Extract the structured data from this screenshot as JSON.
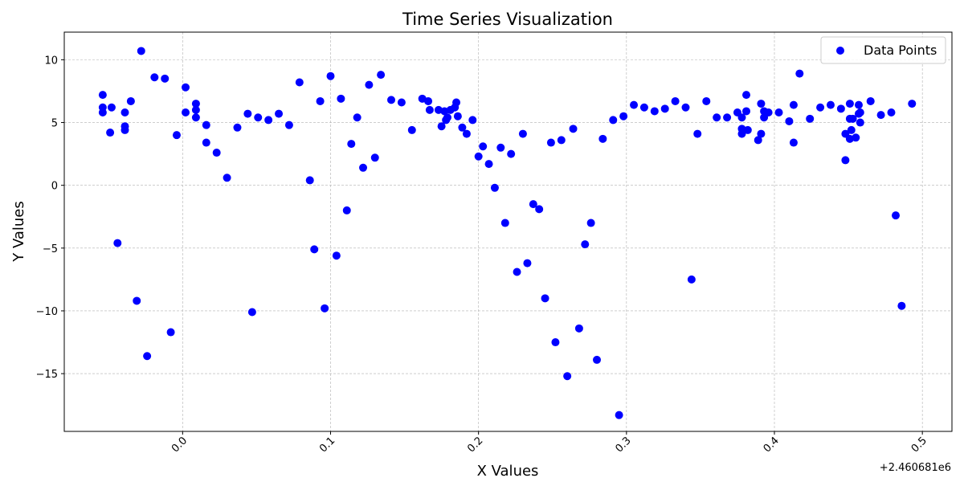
{
  "chart_data": {
    "type": "scatter",
    "title": "Time Series Visualization",
    "xlabel": "X Values",
    "ylabel": "Y Values",
    "x_offset_label": "+2.460681e6",
    "xlim": [
      -0.08,
      0.52
    ],
    "ylim": [
      -19.6,
      12.2
    ],
    "x_ticks": [
      0.0,
      0.1,
      0.2,
      0.3,
      0.4,
      0.5
    ],
    "x_tick_labels": [
      "0.0",
      "0.1",
      "0.2",
      "0.3",
      "0.4",
      "0.5"
    ],
    "y_ticks": [
      -15,
      -10,
      -5,
      0,
      5,
      10
    ],
    "y_tick_labels": [
      "−15",
      "−10",
      "−5",
      "0",
      "5",
      "10"
    ],
    "grid": true,
    "legend_position": "top-right",
    "marker_color": "#0000ff",
    "series": [
      {
        "name": "Data Points",
        "points": [
          [
            -0.054,
            7.2
          ],
          [
            -0.054,
            6.2
          ],
          [
            -0.054,
            5.8
          ],
          [
            -0.048,
            6.2
          ],
          [
            -0.049,
            4.2
          ],
          [
            -0.044,
            -4.6
          ],
          [
            -0.039,
            5.8
          ],
          [
            -0.039,
            4.7
          ],
          [
            -0.039,
            4.4
          ],
          [
            -0.035,
            6.7
          ],
          [
            -0.031,
            -9.2
          ],
          [
            -0.028,
            10.7
          ],
          [
            -0.024,
            -13.6
          ],
          [
            -0.019,
            8.6
          ],
          [
            -0.012,
            8.5
          ],
          [
            -0.008,
            -11.7
          ],
          [
            -0.004,
            4.0
          ],
          [
            0.002,
            5.8
          ],
          [
            0.002,
            7.8
          ],
          [
            0.009,
            6.5
          ],
          [
            0.009,
            6.0
          ],
          [
            0.009,
            5.4
          ],
          [
            0.016,
            4.8
          ],
          [
            0.016,
            3.4
          ],
          [
            0.023,
            2.6
          ],
          [
            0.03,
            0.6
          ],
          [
            0.037,
            4.6
          ],
          [
            0.044,
            5.7
          ],
          [
            0.047,
            -10.1
          ],
          [
            0.051,
            5.4
          ],
          [
            0.058,
            5.2
          ],
          [
            0.065,
            5.7
          ],
          [
            0.072,
            4.8
          ],
          [
            0.079,
            8.2
          ],
          [
            0.086,
            0.4
          ],
          [
            0.089,
            -5.1
          ],
          [
            0.093,
            6.7
          ],
          [
            0.096,
            -9.8
          ],
          [
            0.1,
            8.7
          ],
          [
            0.104,
            -5.6
          ],
          [
            0.107,
            6.9
          ],
          [
            0.111,
            -2.0
          ],
          [
            0.114,
            3.3
          ],
          [
            0.118,
            5.4
          ],
          [
            0.122,
            1.4
          ],
          [
            0.126,
            8.0
          ],
          [
            0.13,
            2.2
          ],
          [
            0.134,
            8.8
          ],
          [
            0.141,
            6.8
          ],
          [
            0.148,
            6.6
          ],
          [
            0.155,
            4.4
          ],
          [
            0.162,
            6.9
          ],
          [
            0.166,
            6.7
          ],
          [
            0.167,
            6.0
          ],
          [
            0.173,
            6.0
          ],
          [
            0.175,
            4.7
          ],
          [
            0.177,
            5.9
          ],
          [
            0.178,
            5.2
          ],
          [
            0.179,
            5.4
          ],
          [
            0.181,
            6.0
          ],
          [
            0.184,
            6.2
          ],
          [
            0.185,
            6.6
          ],
          [
            0.186,
            5.5
          ],
          [
            0.189,
            4.6
          ],
          [
            0.192,
            4.1
          ],
          [
            0.196,
            5.2
          ],
          [
            0.2,
            2.3
          ],
          [
            0.203,
            3.1
          ],
          [
            0.207,
            1.7
          ],
          [
            0.211,
            -0.2
          ],
          [
            0.215,
            3.0
          ],
          [
            0.218,
            -3.0
          ],
          [
            0.222,
            2.5
          ],
          [
            0.226,
            -6.9
          ],
          [
            0.23,
            4.1
          ],
          [
            0.233,
            -6.2
          ],
          [
            0.237,
            -1.5
          ],
          [
            0.241,
            -1.9
          ],
          [
            0.245,
            -9.0
          ],
          [
            0.249,
            3.4
          ],
          [
            0.252,
            -12.5
          ],
          [
            0.256,
            3.6
          ],
          [
            0.26,
            -15.2
          ],
          [
            0.264,
            4.5
          ],
          [
            0.268,
            -11.4
          ],
          [
            0.272,
            -4.7
          ],
          [
            0.276,
            -3.0
          ],
          [
            0.28,
            -13.9
          ],
          [
            0.284,
            3.7
          ],
          [
            0.291,
            5.2
          ],
          [
            0.295,
            -18.3
          ],
          [
            0.298,
            5.5
          ],
          [
            0.305,
            6.4
          ],
          [
            0.312,
            6.2
          ],
          [
            0.319,
            5.9
          ],
          [
            0.326,
            6.1
          ],
          [
            0.333,
            6.7
          ],
          [
            0.34,
            6.2
          ],
          [
            0.344,
            -7.5
          ],
          [
            0.348,
            4.1
          ],
          [
            0.354,
            6.7
          ],
          [
            0.361,
            5.4
          ],
          [
            0.368,
            5.4
          ],
          [
            0.375,
            5.8
          ],
          [
            0.378,
            5.4
          ],
          [
            0.378,
            4.5
          ],
          [
            0.378,
            4.1
          ],
          [
            0.381,
            7.2
          ],
          [
            0.381,
            5.9
          ],
          [
            0.382,
            4.4
          ],
          [
            0.389,
            3.6
          ],
          [
            0.391,
            4.1
          ],
          [
            0.391,
            6.5
          ],
          [
            0.393,
            5.4
          ],
          [
            0.393,
            5.9
          ],
          [
            0.396,
            5.8
          ],
          [
            0.403,
            5.8
          ],
          [
            0.41,
            5.1
          ],
          [
            0.413,
            6.4
          ],
          [
            0.413,
            3.4
          ],
          [
            0.417,
            8.9
          ],
          [
            0.424,
            5.3
          ],
          [
            0.431,
            6.2
          ],
          [
            0.438,
            6.4
          ],
          [
            0.445,
            6.1
          ],
          [
            0.448,
            2.0
          ],
          [
            0.448,
            4.1
          ],
          [
            0.451,
            6.5
          ],
          [
            0.451,
            5.3
          ],
          [
            0.451,
            3.7
          ],
          [
            0.452,
            4.4
          ],
          [
            0.453,
            5.3
          ],
          [
            0.455,
            3.8
          ],
          [
            0.457,
            6.4
          ],
          [
            0.457,
            5.7
          ],
          [
            0.458,
            5.0
          ],
          [
            0.458,
            5.8
          ],
          [
            0.465,
            6.7
          ],
          [
            0.472,
            5.6
          ],
          [
            0.479,
            5.8
          ],
          [
            0.482,
            -2.4
          ],
          [
            0.486,
            -9.6
          ],
          [
            0.493,
            6.5
          ]
        ]
      }
    ]
  }
}
